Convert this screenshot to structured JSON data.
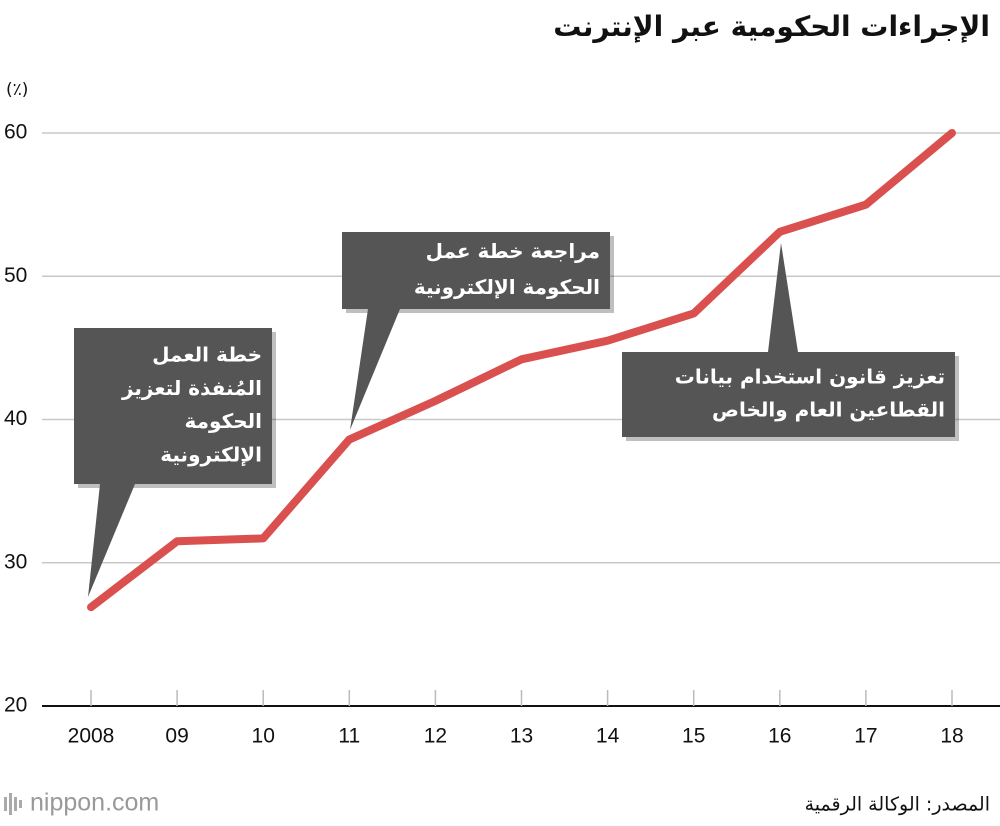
{
  "chart_data": {
    "type": "line",
    "title": "الإجراءات الحكومية عبر الإنترنت",
    "unit_label": "(٪)",
    "categories": [
      "2008",
      "09",
      "10",
      "11",
      "12",
      "13",
      "14",
      "15",
      "16",
      "17",
      "18"
    ],
    "series": [
      {
        "name": "الإجراءات الحكومية عبر الإنترنت",
        "color": "#d9504f",
        "values": [
          26.9,
          31.5,
          31.7,
          38.6,
          41.3,
          44.2,
          45.5,
          47.4,
          53.1,
          55.0,
          60.0
        ]
      }
    ],
    "ylim": [
      20,
      60
    ],
    "yticks": [
      20,
      30,
      40,
      50,
      60
    ],
    "grid": true,
    "annotations": [
      {
        "lines": [
          "خطة العمل",
          "المُنفذة لتعزيز",
          "الحكومة",
          "الإلكترونية"
        ]
      },
      {
        "lines": [
          "مراجعة خطة عمل",
          "الحكومة الإلكترونية"
        ]
      },
      {
        "lines": [
          "تعزيز قانون استخدام بيانات",
          "القطاعين العام والخاص"
        ]
      }
    ],
    "source": "المصدر: الوكالة الرقمية",
    "logo": "nippon.com"
  }
}
